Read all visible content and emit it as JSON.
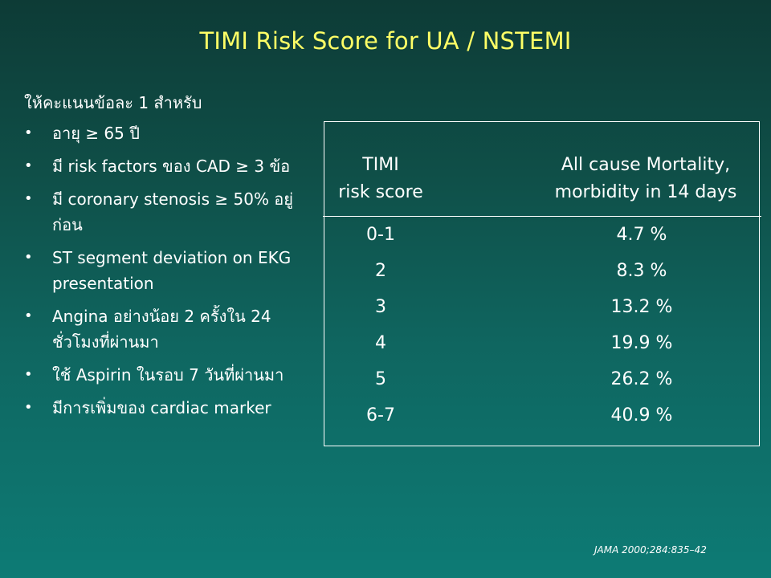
{
  "title": "TIMI Risk Score for UA / NSTEMI",
  "intro": "ให้คะแนนข้อละ 1 สำหรับ",
  "bullet_glyph": "•",
  "criteria": [
    "อายุ ≥ 65 ปี",
    "มี risk factors ของ CAD ≥ 3 ข้อ",
    "มี coronary stenosis ≥ 50% อยู่ก่อน",
    "ST segment deviation on EKG presentation",
    "Angina อย่างน้อย 2 ครั้งใน 24 ชั่วโมงที่ผ่านมา",
    "ใช้ Aspirin ในรอบ 7 วันที่ผ่านมา",
    "มีการเพิ่มของ cardiac marker"
  ],
  "table": {
    "headers": {
      "score_line1": "TIMI",
      "score_line2": "risk score",
      "mortality_line1": "All cause Mortality,",
      "mortality_line2": "morbidity in 14 days"
    },
    "rows": [
      {
        "score": "0-1",
        "mortality": "4.7 %"
      },
      {
        "score": "2",
        "mortality": "8.3 %"
      },
      {
        "score": "3",
        "mortality": "13.2 %"
      },
      {
        "score": "4",
        "mortality": "19.9 %"
      },
      {
        "score": "5",
        "mortality": "26.2 %"
      },
      {
        "score": "6-7",
        "mortality": "40.9 %"
      }
    ]
  },
  "citation": "JAMA 2000;284:835–42",
  "colors": {
    "title": "#ffff66",
    "text": "#ffffff",
    "background_top": "#0d3b36",
    "background_bottom": "#0d7b75"
  }
}
